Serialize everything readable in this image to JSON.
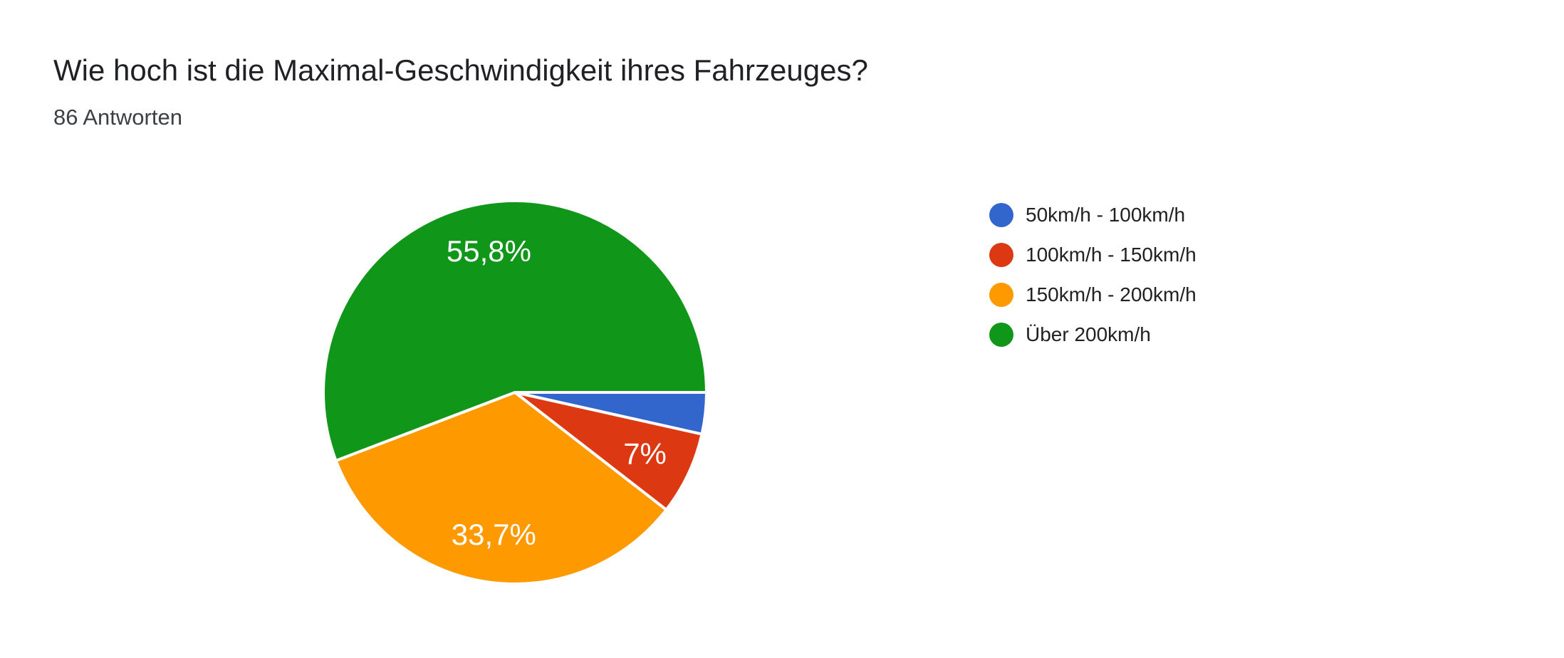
{
  "page": {
    "background_color": "#ffffff"
  },
  "header": {
    "title": "Wie hoch ist die Maximal-Geschwindigkeit ihres Fahrzeuges?",
    "responses_count": "86 Antworten"
  },
  "chart_data": {
    "type": "pie",
    "title": "Wie hoch ist die Maximal-Geschwindigkeit ihres Fahrzeuges?",
    "subtitle": "86 Antworten",
    "total_responses": 86,
    "legend_position": "right",
    "start_angle_deg": 0,
    "direction": "clockwise",
    "radius_px": 269,
    "label_radius_fraction": 0.75,
    "separator_color": "#ffffff",
    "label_text_color": "#ffffff",
    "slices": [
      {
        "label": "50km/h - 100km/h",
        "percent": 3.5,
        "display_label": "",
        "color": "#3366CC"
      },
      {
        "label": "100km/h - 150km/h",
        "percent": 7.0,
        "display_label": "7%",
        "color": "#DC3912"
      },
      {
        "label": "150km/h - 200km/h",
        "percent": 33.7,
        "display_label": "33,7%",
        "color": "#FF9900"
      },
      {
        "label": "Über 200km/h",
        "percent": 55.8,
        "display_label": "55,8%",
        "color": "#109618"
      }
    ]
  }
}
